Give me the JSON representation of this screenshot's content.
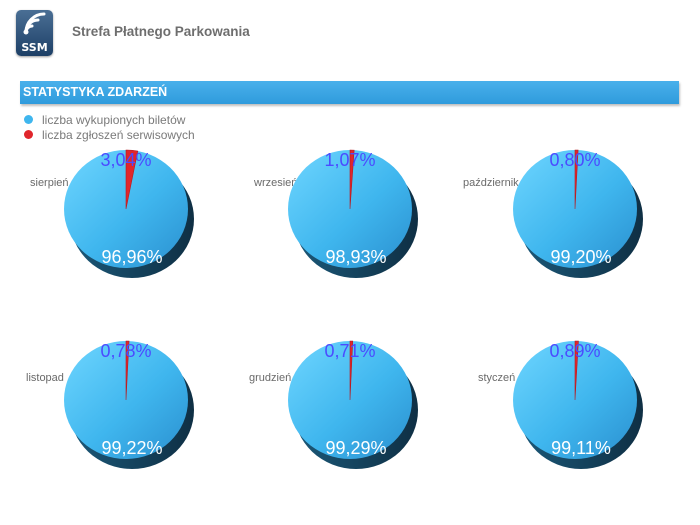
{
  "header": {
    "logo_text": "SSM",
    "app_title": "Strefa Płatnego Parkowania"
  },
  "section": {
    "title": "STATYSTYKA ZDARZEŃ"
  },
  "colors": {
    "tickets": "#3fb6ee",
    "service": "#e0262c",
    "small_label": "#4b4bff",
    "big_label": "#ffffff"
  },
  "legend": [
    {
      "label": "liczba wykupionych biletów",
      "color": "#3fb6ee"
    },
    {
      "label": "liczba zgłoszeń serwisowych",
      "color": "#e0262c"
    }
  ],
  "chart_data": [
    {
      "type": "pie",
      "title": "sierpień",
      "labels": [
        "liczba wykupionych biletów",
        "liczba zgłoszeń serwisowych"
      ],
      "values": [
        96.96,
        3.04
      ],
      "display": [
        "96,96%",
        "3,04%"
      ]
    },
    {
      "type": "pie",
      "title": "wrzesień",
      "labels": [
        "liczba wykupionych biletów",
        "liczba zgłoszeń serwisowych"
      ],
      "values": [
        98.93,
        1.07
      ],
      "display": [
        "98,93%",
        "1,07%"
      ]
    },
    {
      "type": "pie",
      "title": "październik",
      "labels": [
        "liczba wykupionych biletów",
        "liczba zgłoszeń serwisowych"
      ],
      "values": [
        99.2,
        0.8
      ],
      "display": [
        "99,20%",
        "0,80%"
      ]
    },
    {
      "type": "pie",
      "title": "listopad",
      "labels": [
        "liczba wykupionych biletów",
        "liczba zgłoszeń serwisowych"
      ],
      "values": [
        99.22,
        0.78
      ],
      "display": [
        "99,22%",
        "0,78%"
      ]
    },
    {
      "type": "pie",
      "title": "grudzień",
      "labels": [
        "liczba wykupionych biletów",
        "liczba zgłoszeń serwisowych"
      ],
      "values": [
        99.29,
        0.71
      ],
      "display": [
        "99,29%",
        "0,71%"
      ]
    },
    {
      "type": "pie",
      "title": "styczeń",
      "labels": [
        "liczba wykupionych biletów",
        "liczba zgłoszeń serwisowych"
      ],
      "values": [
        99.11,
        0.89
      ],
      "display": [
        "99,11%",
        "0,89%"
      ]
    }
  ]
}
